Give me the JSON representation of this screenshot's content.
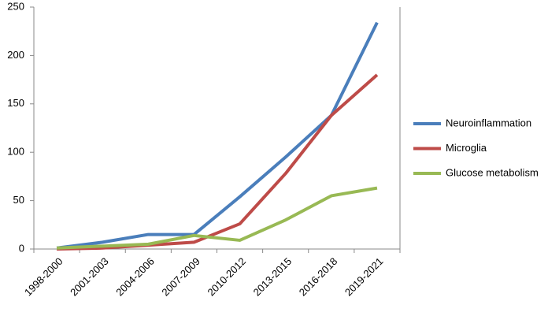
{
  "chart_data": {
    "type": "line",
    "categories": [
      "1998-2000",
      "2001-2003",
      "2004-2006",
      "2007-2009",
      "2010-2012",
      "2013-2015",
      "2016-2018",
      "2019-2021"
    ],
    "series": [
      {
        "name": "Neuroinflammation",
        "color": "#4a7ebb",
        "values": [
          1,
          7,
          15,
          15,
          54,
          95,
          138,
          234
        ]
      },
      {
        "name": "Microglia",
        "color": "#be4b48",
        "values": [
          0,
          1,
          4,
          7,
          26,
          78,
          138,
          180
        ]
      },
      {
        "name": "Glucose metabolism",
        "color": "#98b954",
        "values": [
          1,
          3,
          5,
          14,
          9,
          30,
          55,
          63
        ]
      }
    ],
    "ylim": [
      0,
      250
    ],
    "yticks": [
      0,
      50,
      100,
      150,
      200,
      250
    ],
    "grid": false,
    "legend": "right"
  }
}
